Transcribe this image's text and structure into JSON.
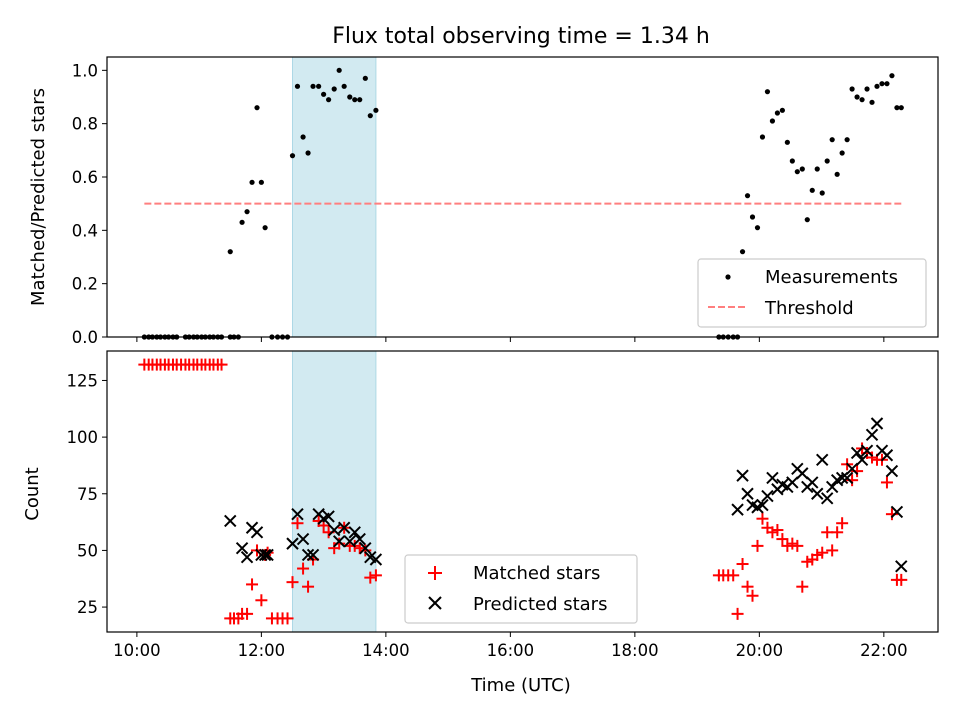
{
  "title": "Flux total observing time = 1.34 h",
  "colors": {
    "span": "#add8e6",
    "threshold": "#ff7f7f",
    "measurements": "#000000",
    "matched": "#ff0000",
    "predicted": "#000000"
  },
  "chart_data": [
    {
      "type": "scatter",
      "ylabel": "Matched/Predicted stars",
      "xlim": [
        9.52,
        22.87
      ],
      "ylim": [
        0,
        1.05
      ],
      "yticks": [
        0.0,
        0.2,
        0.4,
        0.6,
        0.8,
        1.0
      ],
      "ytick_labels": [
        "0.0",
        "0.2",
        "0.4",
        "0.6",
        "0.8",
        "1.0"
      ],
      "shaded_span": [
        12.5,
        13.84
      ],
      "legend_position": "lower right",
      "threshold": {
        "name": "Threshold",
        "value": 0.5,
        "x": [
          10.12,
          22.28
        ],
        "style": "dashed"
      },
      "series": [
        {
          "name": "Measurements",
          "marker": "dot",
          "x": [
            10.12,
            10.19,
            10.25,
            10.32,
            10.38,
            10.45,
            10.51,
            10.58,
            10.64,
            10.78,
            10.84,
            10.91,
            10.97,
            11.04,
            11.1,
            11.17,
            11.23,
            11.3,
            11.36,
            11.5,
            11.56,
            11.63,
            11.5,
            11.69,
            11.77,
            11.85,
            11.93,
            12.0,
            12.06,
            12.17,
            12.26,
            12.34,
            12.42,
            12.5,
            12.58,
            12.67,
            12.75,
            12.83,
            12.92,
            13.0,
            13.08,
            13.17,
            13.25,
            13.33,
            13.42,
            13.5,
            13.58,
            13.67,
            13.75,
            13.84,
            19.35,
            19.42,
            19.5,
            19.58,
            19.65,
            19.73,
            19.81,
            19.89,
            19.97,
            20.05,
            20.13,
            20.21,
            20.29,
            20.37,
            20.45,
            20.53,
            20.61,
            20.69,
            20.77,
            20.85,
            20.93,
            21.01,
            21.09,
            21.17,
            21.25,
            21.33,
            21.41,
            21.49,
            21.57,
            21.65,
            21.73,
            21.81,
            21.89,
            21.97,
            22.05,
            22.13,
            22.21,
            22.28
          ],
          "y": [
            0,
            0,
            0,
            0,
            0,
            0,
            0,
            0,
            0,
            0,
            0,
            0,
            0,
            0,
            0,
            0,
            0,
            0,
            0,
            0,
            0,
            0,
            0.32,
            0.43,
            0.47,
            0.58,
            0.86,
            0.58,
            0.41,
            0,
            0,
            0,
            0,
            0.68,
            0.94,
            0.75,
            0.69,
            0.94,
            0.94,
            0.91,
            0.89,
            0.93,
            1.0,
            0.94,
            0.9,
            0.89,
            0.89,
            0.97,
            0.83,
            0.85,
            0,
            0,
            0,
            0,
            0,
            0.32,
            0.53,
            0.45,
            0.41,
            0.75,
            0.92,
            0.81,
            0.84,
            0.85,
            0.73,
            0.66,
            0.62,
            0.63,
            0.44,
            0.55,
            0.63,
            0.54,
            0.66,
            0.74,
            0.61,
            0.69,
            0.74,
            0.93,
            0.9,
            0.89,
            0.93,
            0.88,
            0.94,
            0.95,
            0.95,
            0.98,
            0.86,
            0.86
          ]
        }
      ]
    },
    {
      "type": "scatter",
      "xlabel": "Time (UTC)",
      "ylabel": "Count",
      "xlim": [
        9.52,
        22.87
      ],
      "ylim": [
        14,
        138
      ],
      "xticks": [
        10,
        12,
        14,
        16,
        18,
        20,
        22
      ],
      "xtick_labels": [
        "10:00",
        "12:00",
        "14:00",
        "16:00",
        "18:00",
        "20:00",
        "22:00"
      ],
      "yticks": [
        25,
        50,
        75,
        100,
        125
      ],
      "ytick_labels": [
        "25",
        "50",
        "75",
        "100",
        "125"
      ],
      "shaded_span": [
        12.5,
        13.84
      ],
      "legend_position": "lower center",
      "series": [
        {
          "name": "Matched stars",
          "marker": "plus",
          "x": [
            10.12,
            10.19,
            10.25,
            10.32,
            10.38,
            10.45,
            10.51,
            10.58,
            10.64,
            10.71,
            10.78,
            10.84,
            10.91,
            10.97,
            11.04,
            11.1,
            11.17,
            11.23,
            11.3,
            11.36,
            11.5,
            11.56,
            11.63,
            11.69,
            11.77,
            11.85,
            11.93,
            12.0,
            12.06,
            12.1,
            12.17,
            12.26,
            12.34,
            12.42,
            12.5,
            12.58,
            12.67,
            12.75,
            12.83,
            12.92,
            13.0,
            13.08,
            13.17,
            13.25,
            13.33,
            13.42,
            13.5,
            13.58,
            13.67,
            13.75,
            13.84,
            19.35,
            19.42,
            19.5,
            19.58,
            19.65,
            19.73,
            19.81,
            19.89,
            19.97,
            20.05,
            20.13,
            20.21,
            20.29,
            20.37,
            20.45,
            20.53,
            20.61,
            20.69,
            20.77,
            20.85,
            20.93,
            21.01,
            21.09,
            21.17,
            21.25,
            21.33,
            21.41,
            21.49,
            21.57,
            21.65,
            21.73,
            21.81,
            21.89,
            21.97,
            22.05,
            22.13,
            22.21,
            22.28
          ],
          "y": [
            132,
            132,
            132,
            132,
            132,
            132,
            132,
            132,
            132,
            132,
            132,
            132,
            132,
            132,
            132,
            132,
            132,
            132,
            132,
            132,
            20,
            20,
            20,
            22,
            22,
            35,
            50,
            28,
            48,
            49,
            20,
            20,
            20,
            20,
            36,
            62,
            42,
            34,
            46,
            63,
            61,
            58,
            51,
            53,
            60,
            52,
            52,
            51,
            50,
            38,
            39,
            39,
            39,
            39,
            39,
            22,
            44,
            34,
            30,
            52,
            64,
            60,
            58,
            59,
            55,
            52,
            53,
            52,
            34,
            45,
            46,
            48,
            49,
            58,
            50,
            58,
            62,
            88,
            81,
            85,
            95,
            93,
            91,
            90,
            90,
            80,
            66,
            37,
            37
          ]
        },
        {
          "name": "Predicted stars",
          "marker": "x",
          "x": [
            11.5,
            11.69,
            11.77,
            11.85,
            11.93,
            12.0,
            12.06,
            12.1,
            12.5,
            12.58,
            12.67,
            12.75,
            12.83,
            12.92,
            13.0,
            13.08,
            13.17,
            13.25,
            13.33,
            13.42,
            13.5,
            13.58,
            13.67,
            13.75,
            13.84,
            19.65,
            19.73,
            19.81,
            19.89,
            19.97,
            20.05,
            20.13,
            20.21,
            20.29,
            20.37,
            20.45,
            20.53,
            20.61,
            20.69,
            20.77,
            20.85,
            20.93,
            21.01,
            21.09,
            21.17,
            21.25,
            21.33,
            21.41,
            21.49,
            21.57,
            21.65,
            21.73,
            21.81,
            21.89,
            21.97,
            22.05,
            22.13,
            22.21,
            22.28
          ],
          "y": [
            63,
            51,
            47,
            60,
            58,
            48,
            48,
            48,
            53,
            66,
            55,
            48,
            48,
            66,
            64,
            65,
            59,
            54,
            60,
            54,
            58,
            55,
            51,
            47,
            46,
            68,
            83,
            75,
            70,
            69,
            70,
            74,
            82,
            77,
            79,
            78,
            80,
            86,
            84,
            78,
            80,
            75,
            90,
            73,
            78,
            81,
            82,
            82,
            86,
            93,
            90,
            94,
            101,
            106,
            94,
            92,
            85,
            67,
            43
          ]
        }
      ]
    }
  ]
}
